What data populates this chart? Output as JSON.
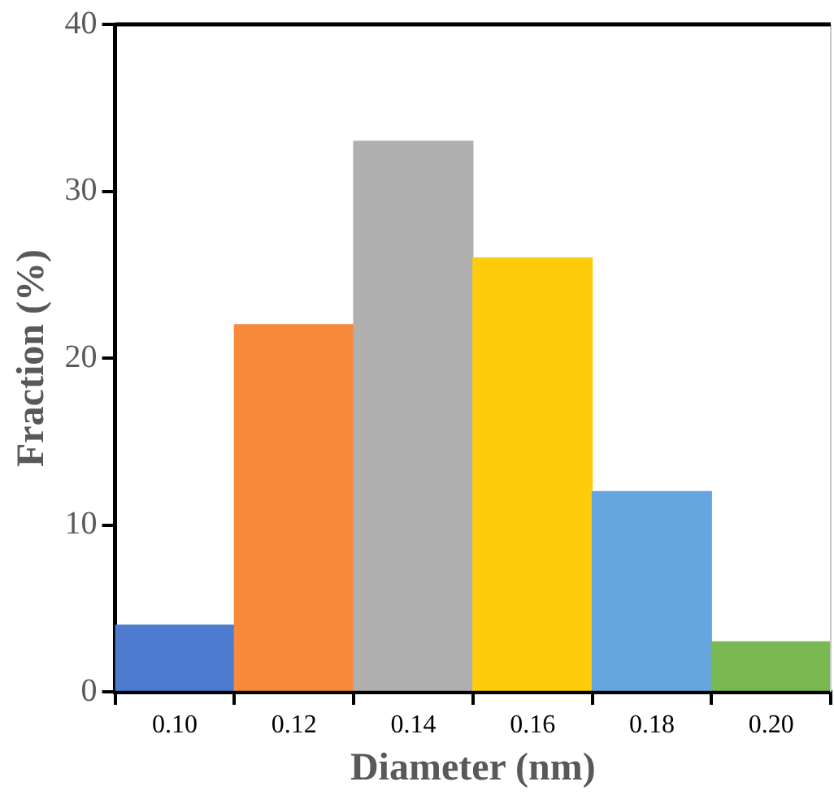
{
  "chart_data": {
    "type": "bar",
    "xlabel": "Diameter (nm)",
    "ylabel": "Fraction (%)",
    "categories": [
      "0.10",
      "0.12",
      "0.14",
      "0.16",
      "0.18",
      "0.20"
    ],
    "values": [
      4,
      22,
      33,
      26,
      12,
      3
    ],
    "colors": [
      "#4d7bd0",
      "#f8893a",
      "#b0b0b0",
      "#fecc0a",
      "#65a6e0",
      "#7ab851"
    ],
    "ylim": [
      0,
      40
    ],
    "yticks": [
      0,
      10,
      20,
      30,
      40
    ],
    "grid": false,
    "legend": false
  }
}
